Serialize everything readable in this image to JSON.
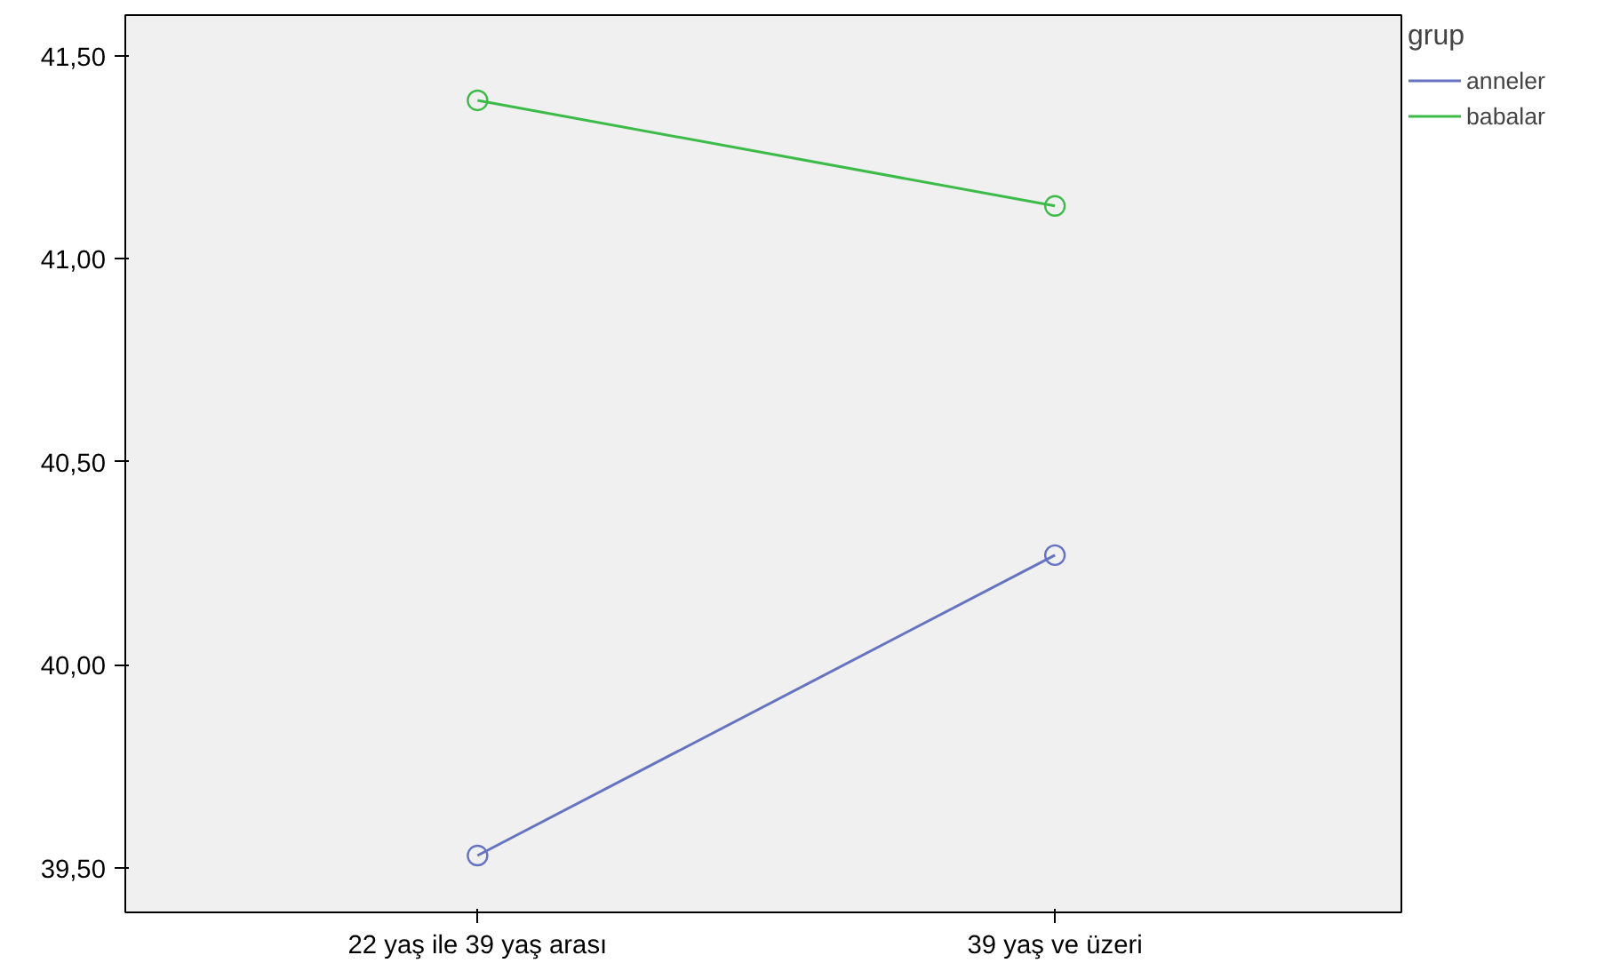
{
  "chart_data": {
    "type": "line",
    "categories": [
      "22 yaş ile 39 yaş arası",
      "39 yaş ve üzeri"
    ],
    "series": [
      {
        "name": "anneler",
        "color": "#6673c0",
        "values": [
          39.53,
          40.27
        ]
      },
      {
        "name": "babalar",
        "color": "#3dbb48",
        "values": [
          41.39,
          41.13
        ]
      }
    ],
    "ylim": [
      39.39,
      41.6
    ],
    "yticks": [
      {
        "value": 39.5,
        "label": "39,50"
      },
      {
        "value": 40.0,
        "label": "40,00"
      },
      {
        "value": 40.5,
        "label": "40,50"
      },
      {
        "value": 41.0,
        "label": "41,00"
      },
      {
        "value": 41.5,
        "label": "41,50"
      }
    ],
    "legend_title": "grup",
    "legend": "top right",
    "grid": false,
    "marker": "circle",
    "line_style": "solid"
  }
}
